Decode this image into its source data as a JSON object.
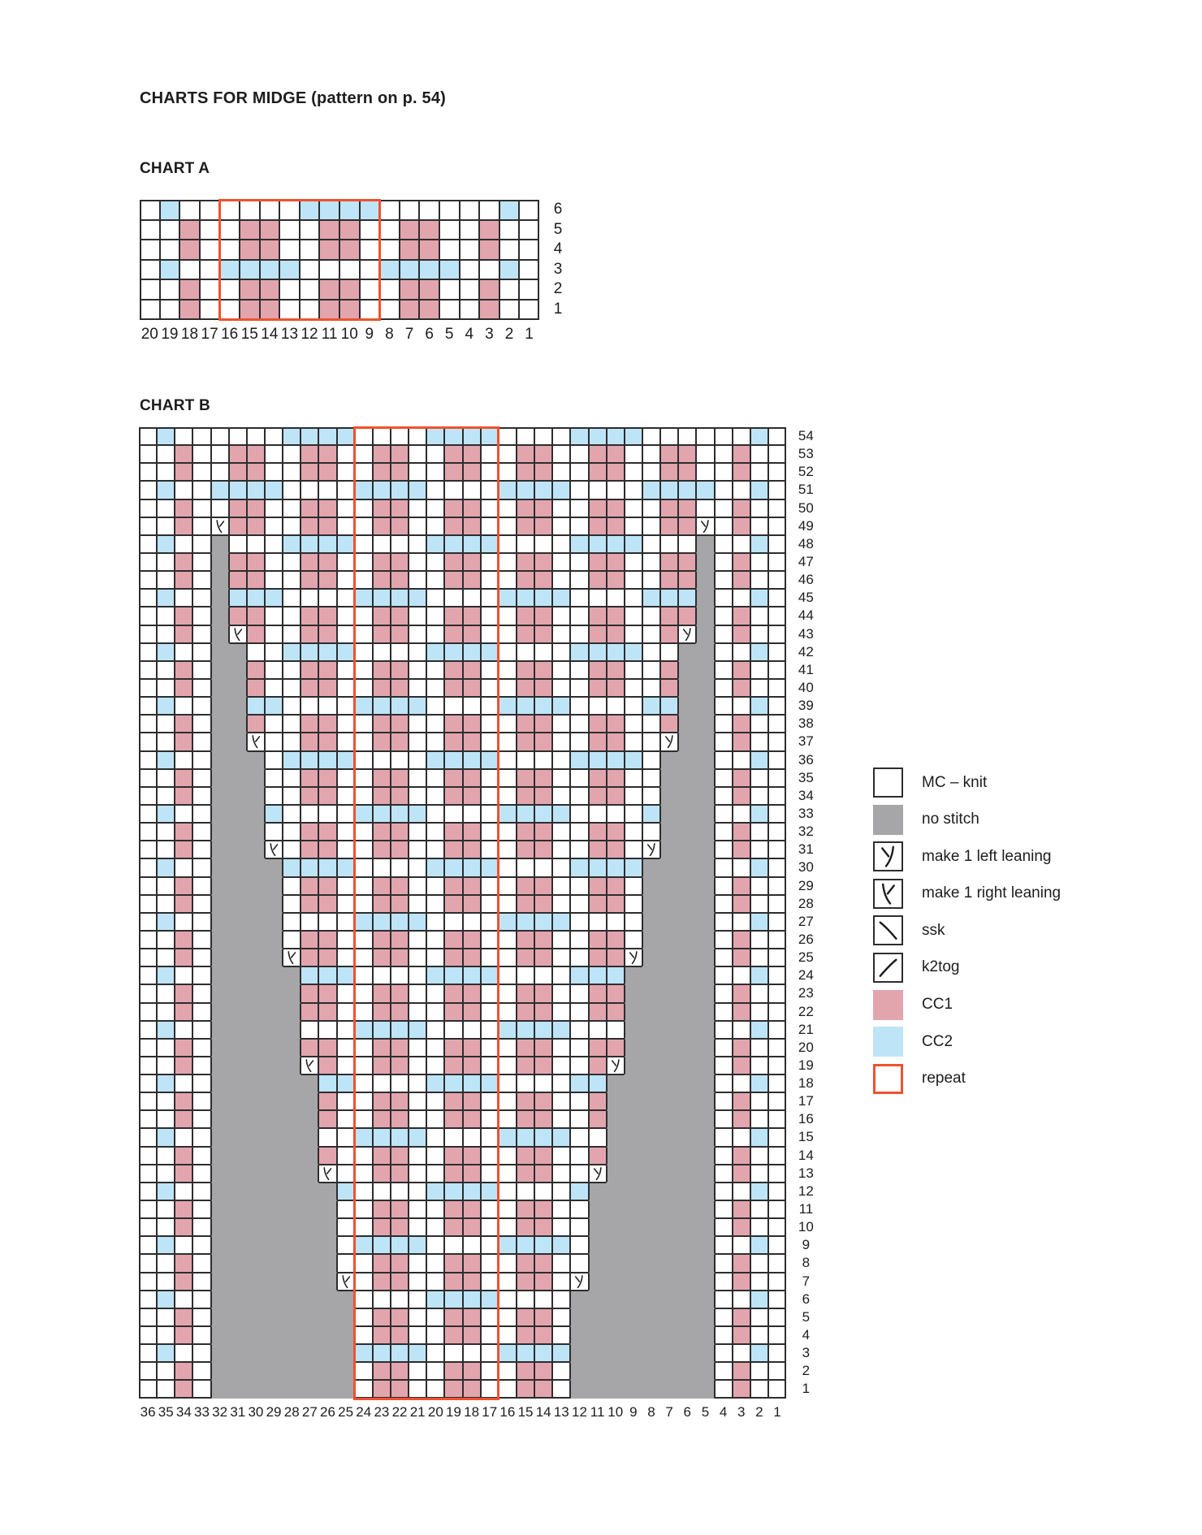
{
  "title": "CHARTS FOR MIDGE (pattern on p. 54)",
  "cell_codes": {
    "W": "MC - knit",
    "P": "CC1",
    "B": "CC2",
    "G": "no stitch",
    "L": "make 1 left leaning",
    "R": "make 1 right leaning"
  },
  "colors": {
    "mc": "#ffffff",
    "cc1": "#e2a5ae",
    "cc2": "#bee4f8",
    "no_stitch": "#a6a6a8",
    "repeat": "#f0512f",
    "grid_line": "#2d2d2d",
    "text": "#1d1d1f"
  },
  "chart_a": {
    "label": "CHART A",
    "col_numbers": [
      20,
      19,
      18,
      17,
      16,
      15,
      14,
      13,
      12,
      11,
      10,
      9,
      8,
      7,
      6,
      5,
      4,
      3,
      2,
      1
    ],
    "row_numbers": [
      6,
      5,
      4,
      3,
      2,
      1
    ],
    "repeat_cols": {
      "from": 16,
      "to": 9
    },
    "rows": [
      "WBWWWWWWBBBBWWWWWWBW",
      "WWPWWPPWWPPWWPPWWPWW",
      "WWPWWPPWWPPWWPPWWPWW",
      "WBWWBBBBWWWWBBBBWWBW",
      "WWPWWPPWWPPWWPPWWPWW",
      "WWPWWPPWWPPWWPPWWPWW"
    ]
  },
  "chart_b": {
    "label": "CHART B",
    "col_numbers": [
      36,
      35,
      34,
      33,
      32,
      31,
      30,
      29,
      28,
      27,
      26,
      25,
      24,
      23,
      22,
      21,
      20,
      19,
      18,
      17,
      16,
      15,
      14,
      13,
      12,
      11,
      10,
      9,
      8,
      7,
      6,
      5,
      4,
      3,
      2,
      1
    ],
    "row_numbers": [
      54,
      53,
      52,
      51,
      50,
      49,
      48,
      47,
      46,
      45,
      44,
      43,
      42,
      41,
      40,
      39,
      38,
      37,
      36,
      35,
      34,
      33,
      32,
      31,
      30,
      29,
      28,
      27,
      26,
      25,
      24,
      23,
      22,
      21,
      20,
      19,
      18,
      17,
      16,
      15,
      14,
      13,
      12,
      11,
      10,
      9,
      8,
      7,
      6,
      5,
      4,
      3,
      2,
      1
    ],
    "repeat_cols": {
      "from": 24,
      "to": 17
    },
    "rows": [
      "WBWWWWWWBBBBWWWWBBBBWWWWBBBBWWWWWWBW",
      "WWPWWPPWWPPWWPPWWPPWWPPWWPPWWPPWWPWW",
      "WWPWWPPWWPPWWPPWWPPWWPPWWPPWWPPWWPWW",
      "WBWWBBBBWWWWBBBBWWWWBBBBWWWWBBBBWWBW",
      "WWPWWPPWWPPWWPPWWPPWWPPWWPPWWPPWWPWW",
      "WWPWRPPWWPPWWPPWWPPWWPPWWPPWWPPLWPWW",
      "WBWWGWWWBBBBWWWWBBBBWWWWBBBBWWWGWWBW",
      "WWPWGPPWWPPWWPPWWPPWWPPWWPPWWPPGWPWW",
      "WWPWGPPWWPPWWPPWWPPWWPPWWPPWWPPGWPWW",
      "WBWWGBBBWWWWBBBBWWWWBBBBWWWWBBBGWWBW",
      "WWPWGPPWWPPWWPPWWPPWWPPWWPPWWPPGWPWW",
      "WWPWGRPWWPPWWPPWWPPWWPPWWPPWWPLGWPWW",
      "WBWWGGWWBBBBWWWWBBBBWWWWBBBBWWGGWWBW",
      "WWPWGGPWWPPWWPPWWPPWWPPWWPPWWPGGWPWW",
      "WWPWGGPWWPPWWPPWWPPWWPPWWPPWWPGGWPWW",
      "WBWWGGBBWWWWBBBBWWWWBBBBWWWWBBGGWWBW",
      "WWPWGGPWWPPWWPPWWPPWWPPWWPPWWPGGWPWW",
      "WWPWGGRWWPPWWPPWWPPWWPPWWPPWWLGGWPWW",
      "WBWWGGGWBBBBWWWWBBBBWWWWBBBBWGGGWWBW",
      "WWPWGGGWWPPWWPPWWPPWWPPWWPPWWGGGWPWW",
      "WWPWGGGWWPPWWPPWWPPWWPPWWPPWWGGGWPWW",
      "WBWWGGGBWWWWBBBBWWWWBBBBWWWWBGGGWWBW",
      "WWPWGGGWWPPWWPPWWPPWWPPWWPPWWGGGWPWW",
      "WWPWGGGRWPPWWPPWWPPWWPPWWPPWLGGGWPWW",
      "WBWWGGGGBBBBWWWWBBBBWWWWBBBBGGGGWWBW",
      "WWPWGGGGWPPWWPPWWPPWWPPWWPPWGGGGWPWW",
      "WWPWGGGGWPPWWPPWWPPWWPPWWPPWGGGGWPWW",
      "WBWWGGGGWWWWBBBBWWWWBBBBWWWWGGGGWWBW",
      "WWPWGGGGWPPWWPPWWPPWWPPWWPPWGGGGWPWW",
      "WWPWGGGGRPPWWPPWWPPWWPPWWPPLGGGGWPWW",
      "WBWWGGGGGBBBWWWWBBBBWWWWBBBGGGGGWWBW",
      "WWPWGGGGGPPWWPPWWPPWWPPWWPPGGGGGWPWW",
      "WWPWGGGGGPPWWPPWWPPWWPPWWPPGGGGGWPWW",
      "WBWWGGGGGWWWBBBBWWWWBBBBWWWGGGGGWWBW",
      "WWPWGGGGGPPWWPPWWPPWWPPWWPPGGGGGWPWW",
      "WWPWGGGGGRPWWPPWWPPWWPPWWPLGGGGGWPWW",
      "WBWWGGGGGGBBWWWWBBBBWWWWBBGGGGGGWWBW",
      "WWPWGGGGGGPWWPPWWPPWWPPWWPGGGGGGWPWW",
      "WWPWGGGGGGPWWPPWWPPWWPPWWPGGGGGGWPWW",
      "WBWWGGGGGGWWBBBBWWWWBBBBWWGGGGGGWWBW",
      "WWPWGGGGGGPWWPPWWPPWWPPWWPGGGGGGWPWW",
      "WWPWGGGGGGRWWPPWWPPWWPPWWLGGGGGGWPWW",
      "WBWWGGGGGGGBWWWWBBBBWWWWBGGGGGGGWWBW",
      "WWPWGGGGGGGWWPPWWPPWWPPWWGGGGGGGWPWW",
      "WWPWGGGGGGGWWPPWWPPWWPPWWGGGGGGGWPWW",
      "WBWWGGGGGGGWBBBBWWWWBBBBWGGGGGGGWWBW",
      "WWPWGGGGGGGWWPPWWPPWWPPWWGGGGGGGWPWW",
      "WWPWGGGGGGGRWPPWWPPWWPPWLGGGGGGGWPWW",
      "WBWWGGGGGGGGWWWWBBBBWWWWGGGGGGGGWWBW",
      "WWPWGGGGGGGGWPPWWPPWWPPWGGGGGGGGWPWW",
      "WWPWGGGGGGGGWPPWWPPWWPPWGGGGGGGGWPWW",
      "WBWWGGGGGGGGBBBBWWWWBBBBGGGGGGGGWWBW",
      "WWPWGGGGGGGGWPPWWPPWWPPWGGGGGGGGWPWW",
      "WWPWGGGGGGGGWPPWWPPWWPPWGGGGGGGGWPWW"
    ]
  },
  "legend": {
    "items": [
      {
        "key": "mc",
        "label": "MC – knit"
      },
      {
        "key": "no_stitch",
        "label": "no stitch"
      },
      {
        "key": "m1l",
        "label": "make 1 left leaning"
      },
      {
        "key": "m1r",
        "label": "make 1 right leaning"
      },
      {
        "key": "ssk",
        "label": "ssk"
      },
      {
        "key": "k2tog",
        "label": "k2tog"
      },
      {
        "key": "cc1",
        "label": "CC1"
      },
      {
        "key": "cc2",
        "label": "CC2"
      },
      {
        "key": "repeat",
        "label": "repeat"
      }
    ]
  }
}
